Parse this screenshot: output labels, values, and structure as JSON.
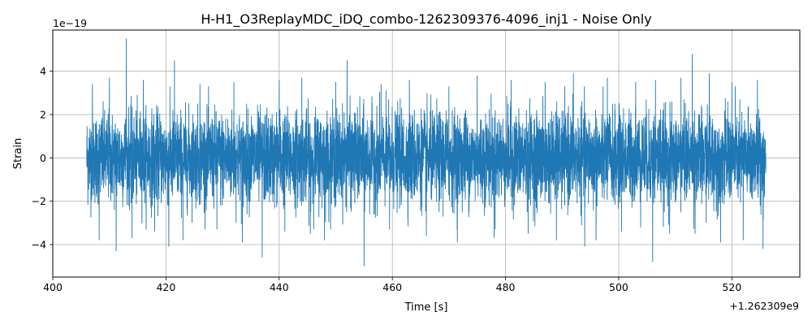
{
  "chart_data": {
    "type": "line",
    "title": "H-H1_O3ReplayMDC_iDQ_combo-1262309376-4096_inj1 - Noise Only",
    "xlabel": "Time [s]",
    "ylabel": "Strain",
    "x_offset_label": "+1.262309e9",
    "y_scale_label": "1e−19",
    "xlim": [
      400,
      532
    ],
    "ylim": [
      -5.5,
      5.9
    ],
    "x_ticks": [
      400,
      420,
      440,
      460,
      480,
      500,
      520
    ],
    "x_tick_labels": [
      "400",
      "420",
      "440",
      "460",
      "480",
      "500",
      "520"
    ],
    "y_ticks": [
      -4,
      -2,
      0,
      2,
      4
    ],
    "y_tick_labels": [
      "−4",
      "−2",
      "0",
      "2",
      "4"
    ],
    "grid": true,
    "series": [
      {
        "color": "#1f77b4",
        "x_range": [
          406,
          526
        ],
        "typical_band": [
          -2.2,
          2.2
        ],
        "peaks": [
          {
            "x": 407.0,
            "y": 3.4
          },
          {
            "x": 408.2,
            "y": -3.8
          },
          {
            "x": 410.0,
            "y": 3.7
          },
          {
            "x": 411.2,
            "y": -4.3
          },
          {
            "x": 413.0,
            "y": 5.5
          },
          {
            "x": 414.0,
            "y": -3.7
          },
          {
            "x": 416.0,
            "y": 3.6
          },
          {
            "x": 418.0,
            "y": -3.4
          },
          {
            "x": 421.5,
            "y": 4.5
          },
          {
            "x": 420.5,
            "y": -4.1
          },
          {
            "x": 423.0,
            "y": -3.8
          },
          {
            "x": 426.0,
            "y": 3.4
          },
          {
            "x": 429.0,
            "y": -3.3
          },
          {
            "x": 432.0,
            "y": 3.5
          },
          {
            "x": 433.5,
            "y": -3.9
          },
          {
            "x": 437.0,
            "y": -4.6
          },
          {
            "x": 440.0,
            "y": 3.6
          },
          {
            "x": 441.0,
            "y": -3.4
          },
          {
            "x": 444.0,
            "y": 3.7
          },
          {
            "x": 445.5,
            "y": -3.5
          },
          {
            "x": 448.0,
            "y": -3.8
          },
          {
            "x": 450.0,
            "y": 3.5
          },
          {
            "x": 452.0,
            "y": 4.5
          },
          {
            "x": 455.0,
            "y": -5.0
          },
          {
            "x": 458.0,
            "y": 3.4
          },
          {
            "x": 459.5,
            "y": -3.3
          },
          {
            "x": 463.0,
            "y": 3.6
          },
          {
            "x": 466.0,
            "y": -3.6
          },
          {
            "x": 470.0,
            "y": 3.3
          },
          {
            "x": 471.5,
            "y": -3.9
          },
          {
            "x": 475.0,
            "y": 3.8
          },
          {
            "x": 478.0,
            "y": -3.7
          },
          {
            "x": 481.0,
            "y": 3.6
          },
          {
            "x": 484.0,
            "y": -3.5
          },
          {
            "x": 487.0,
            "y": 3.5
          },
          {
            "x": 489.0,
            "y": -3.8
          },
          {
            "x": 492.0,
            "y": 3.9
          },
          {
            "x": 494.0,
            "y": -4.1
          },
          {
            "x": 496.0,
            "y": -3.8
          },
          {
            "x": 498.0,
            "y": 3.7
          },
          {
            "x": 500.5,
            "y": -3.4
          },
          {
            "x": 503.0,
            "y": 3.5
          },
          {
            "x": 506.0,
            "y": -4.8
          },
          {
            "x": 506.5,
            "y": 3.6
          },
          {
            "x": 509.0,
            "y": -3.5
          },
          {
            "x": 511.0,
            "y": 3.7
          },
          {
            "x": 513.0,
            "y": 4.8
          },
          {
            "x": 513.5,
            "y": -3.5
          },
          {
            "x": 516.0,
            "y": 3.9
          },
          {
            "x": 518.0,
            "y": -3.9
          },
          {
            "x": 520.0,
            "y": 3.5
          },
          {
            "x": 522.0,
            "y": -3.8
          },
          {
            "x": 524.5,
            "y": 3.6
          },
          {
            "x": 525.5,
            "y": -4.2
          }
        ]
      }
    ]
  }
}
